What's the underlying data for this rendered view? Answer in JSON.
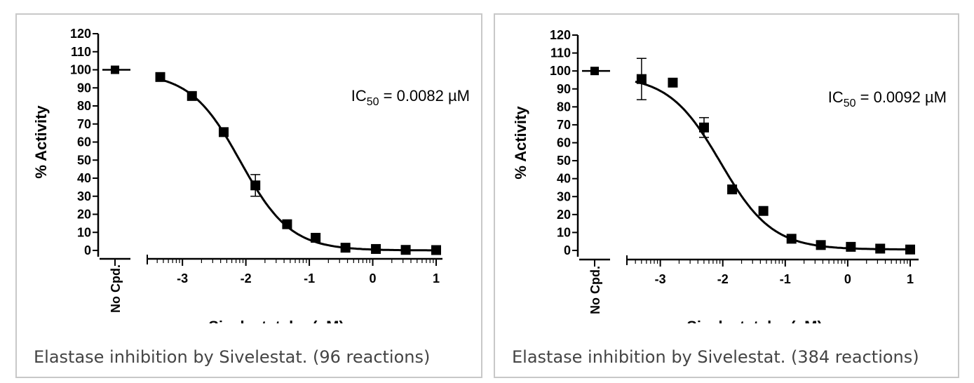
{
  "chart_data": [
    {
      "type": "scatter",
      "x_axis_label": "Sivelestat, log(µM)",
      "y_axis_label": "% Activity",
      "control_label": "No Cpd.",
      "control_value": 100,
      "control_error": 2,
      "annotation": {
        "prefix": "IC",
        "subscript": "50",
        "suffix": " = 0.0082 µM"
      },
      "caption": "Elastase inhibition by Sivelestat. (96 reactions)",
      "ylim": [
        0,
        120
      ],
      "y_ticks": [
        "0",
        "10",
        "20",
        "30",
        "40",
        "50",
        "60",
        "70",
        "80",
        "90",
        "100",
        "110",
        "120"
      ],
      "xlim": [
        -3.4,
        1.0
      ],
      "x_ticks": [
        "-3",
        "-2",
        "-1",
        "0",
        "1"
      ],
      "points": [
        {
          "x": -3.35,
          "y": 96,
          "err": 1
        },
        {
          "x": -2.85,
          "y": 85.5,
          "err": 1
        },
        {
          "x": -2.35,
          "y": 65.5,
          "err": 1
        },
        {
          "x": -1.85,
          "y": 36,
          "err": 6
        },
        {
          "x": -1.35,
          "y": 14.5,
          "err": 1
        },
        {
          "x": -0.9,
          "y": 7,
          "err": 0.8
        },
        {
          "x": -0.43,
          "y": 1.5,
          "err": 0.5
        },
        {
          "x": 0.05,
          "y": 0.8,
          "err": 0.5
        },
        {
          "x": 0.52,
          "y": 0.3,
          "err": 0.3
        },
        {
          "x": 1.0,
          "y": 0.2,
          "err": 0.3
        }
      ],
      "fit": {
        "top": 98.5,
        "bottom": 0,
        "log_ic50": -2.086,
        "hill": 1.1
      }
    },
    {
      "type": "scatter",
      "x_axis_label": "Sivelestat, log(µM)",
      "y_axis_label": "% Activity",
      "control_label": "No Cpd.",
      "control_value": 100,
      "control_error": 1,
      "annotation": {
        "prefix": "IC",
        "subscript": "50",
        "suffix": " = 0.0092 µM"
      },
      "caption": "Elastase inhibition by Sivelestat. (384 reactions)",
      "ylim": [
        0,
        120
      ],
      "y_ticks": [
        "0",
        "10",
        "20",
        "30",
        "40",
        "50",
        "60",
        "70",
        "80",
        "90",
        "100",
        "110",
        "120"
      ],
      "xlim": [
        -3.4,
        1.0
      ],
      "x_ticks": [
        "-3",
        "-2",
        "-1",
        "0",
        "1"
      ],
      "points": [
        {
          "x": -3.3,
          "y": 95.5,
          "err": 11.5
        },
        {
          "x": -2.8,
          "y": 93.5,
          "err": 1
        },
        {
          "x": -2.3,
          "y": 68.5,
          "err": 5.5
        },
        {
          "x": -1.85,
          "y": 34,
          "err": 1.5
        },
        {
          "x": -1.35,
          "y": 22,
          "err": 1
        },
        {
          "x": -0.9,
          "y": 6.5,
          "err": 1
        },
        {
          "x": -0.43,
          "y": 3,
          "err": 1
        },
        {
          "x": 0.05,
          "y": 2,
          "err": 0.8
        },
        {
          "x": 0.52,
          "y": 1,
          "err": 0.5
        },
        {
          "x": 1.0,
          "y": 0.5,
          "err": 0.5
        }
      ],
      "fit": {
        "top": 97.5,
        "bottom": 0.5,
        "log_ic50": -2.036,
        "hill": 1.05
      }
    }
  ]
}
